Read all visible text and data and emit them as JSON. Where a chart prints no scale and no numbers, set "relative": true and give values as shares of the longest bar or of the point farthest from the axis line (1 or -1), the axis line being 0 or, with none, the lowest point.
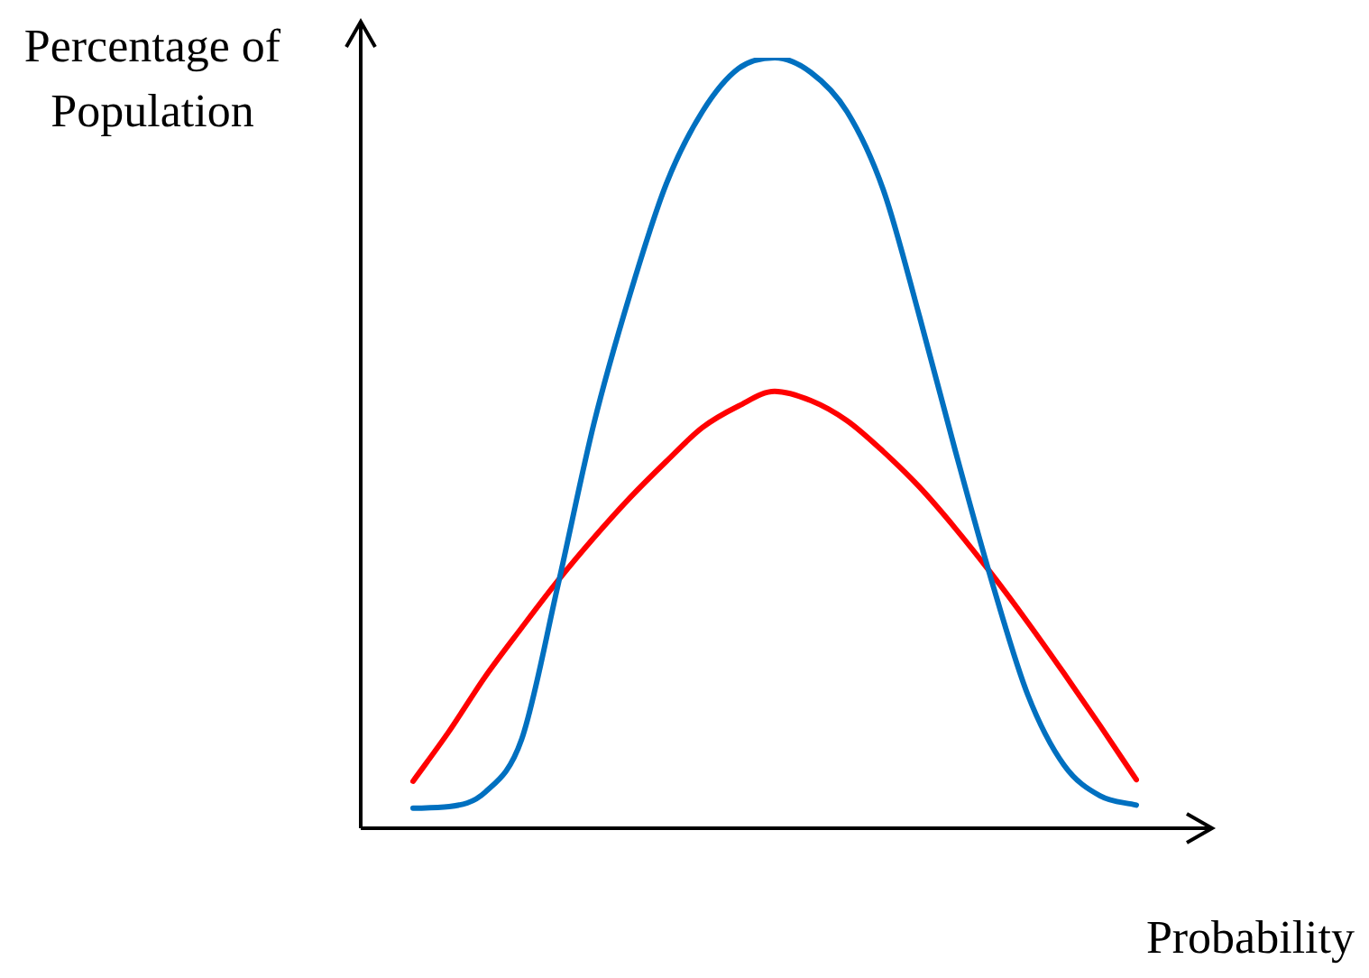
{
  "chart_data": {
    "type": "line",
    "relative": true,
    "xlabel": "Probability",
    "ylabel": "Percentage of Population",
    "categories": [
      null,
      null,
      null,
      null,
      null,
      null,
      null,
      null,
      null,
      null,
      null,
      null,
      null,
      null,
      null,
      null,
      null,
      null,
      null,
      null,
      null
    ],
    "series": [
      {
        "color": "#0070c0",
        "values": [
          0.026,
          0.028,
          0.047,
          0.115,
          0.314,
          0.525,
          0.693,
          0.836,
          0.93,
          0.986,
          1,
          0.981,
          0.93,
          0.829,
          0.665,
          0.489,
          0.321,
          0.173,
          0.082,
          0.042,
          0.03
        ]
      },
      {
        "color": "#ff0000",
        "values": [
          0.061,
          0.126,
          0.197,
          0.26,
          0.321,
          0.377,
          0.429,
          0.476,
          0.52,
          0.548,
          0.567,
          0.555,
          0.529,
          0.489,
          0.443,
          0.389,
          0.33,
          0.267,
          0.201,
          0.133,
          0.063
        ]
      }
    ],
    "legend": false,
    "marker": "none",
    "line_style": "solid"
  }
}
